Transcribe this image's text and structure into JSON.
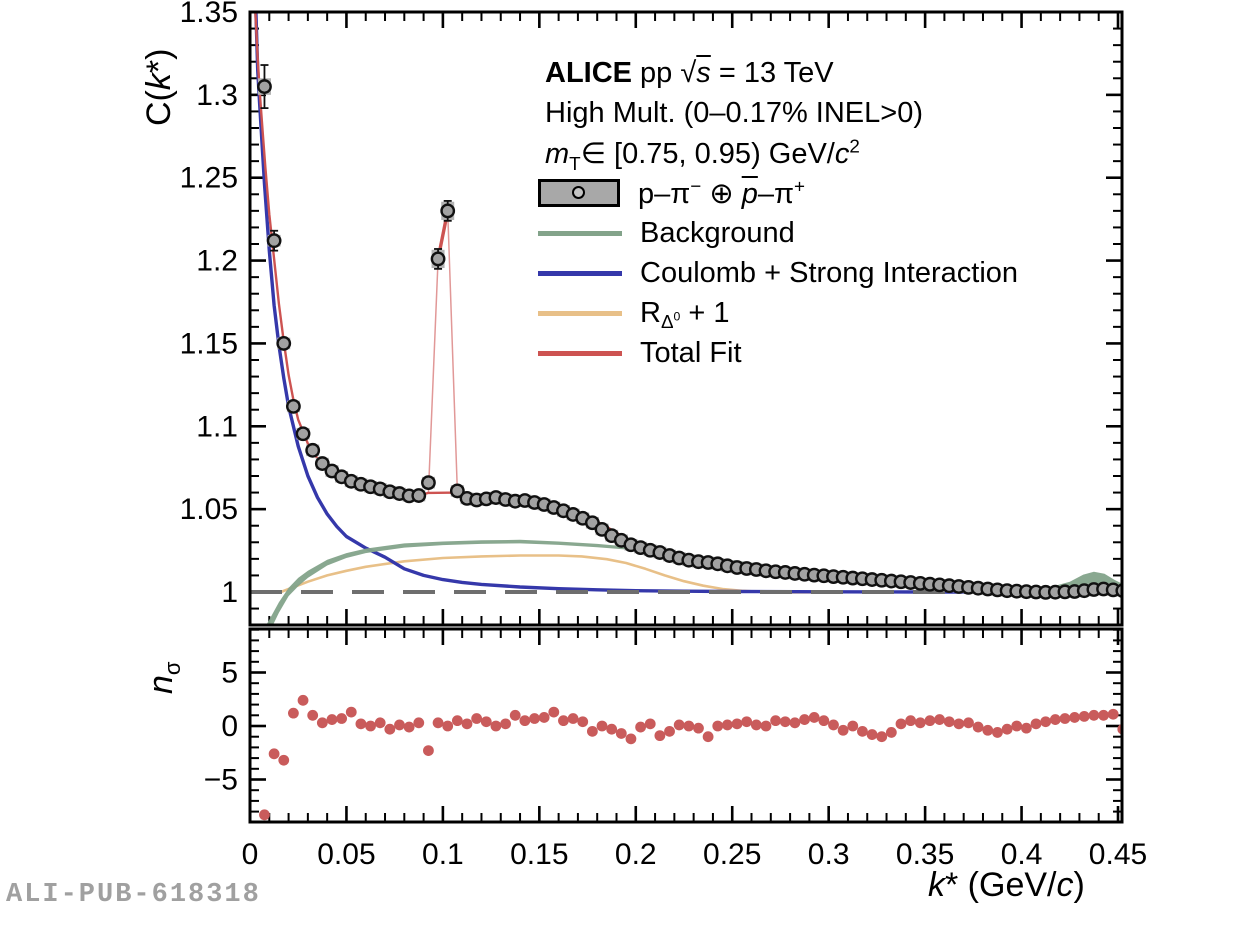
{
  "figure": {
    "watermark": "ALI-PUB-618318",
    "background": "#ffffff"
  },
  "legend": {
    "rows": [
      {
        "name": "alice-header",
        "swatch": "none",
        "color": "",
        "html": "<b>ALICE</b> pp √<i class=\"ov\">s</i> = 13 TeV"
      },
      {
        "name": "multiplicity",
        "swatch": "none",
        "color": "",
        "html": "High Mult. (0–0.17% INEL&gt;0)"
      },
      {
        "name": "mt-range",
        "swatch": "none",
        "color": "",
        "html": "<i>m</i><sub>T</sub>∈ [0.75, 0.95) GeV/<i>c</i><sup>2</sup>"
      },
      {
        "name": "data-pairs",
        "swatch": "box",
        "color": "#a8a8a8",
        "html": "p–π<sup>−</sup> ⊕ <span class=\"ov\">p</span>–π<sup>+</sup>"
      },
      {
        "name": "background",
        "swatch": "line",
        "color": "#83a38a",
        "html": "Background"
      },
      {
        "name": "coulomb",
        "swatch": "line",
        "color": "#3538aa",
        "html": "Coulomb + Strong Interaction"
      },
      {
        "name": "rdelta",
        "swatch": "line",
        "color": "#e8c088",
        "html": "R<sub>Δ<sup>0</sup></sub> + 1"
      },
      {
        "name": "total-fit",
        "swatch": "line",
        "color": "#cd5351",
        "html": "Total Fit"
      }
    ]
  },
  "chart_data": [
    {
      "type": "scatter",
      "panel": "correlation-function",
      "xlabel_html": "<i>k</i>* (GeV/<i>c</i>)",
      "ylabel_html": "C(<i>k</i>*)",
      "xlim": [
        0,
        0.4521
      ],
      "ylim": [
        0.98,
        1.35
      ],
      "xticks": {
        "major": [
          0,
          0.05,
          0.1,
          0.15,
          0.2,
          0.25,
          0.3,
          0.35,
          0.4,
          0.45
        ],
        "labels": [
          "0",
          "0.05",
          "0.1",
          "0.15",
          "0.2",
          "0.25",
          "0.3",
          "0.35",
          "0.4",
          "0.45"
        ],
        "minor_step": 0.01
      },
      "yticks": {
        "major": [
          1,
          1.05,
          1.1,
          1.15,
          1.2,
          1.25,
          1.3,
          1.35
        ],
        "labels": [
          "1",
          "1.05",
          "1.1",
          "1.15",
          "1.2",
          "1.25",
          "1.3",
          "1.35"
        ],
        "minor_step": 0.01
      },
      "reference_line": {
        "y": 1.0,
        "color": "#6e6e6e",
        "dash": [
          32,
          19
        ],
        "width": 4
      },
      "points": {
        "marker": {
          "r": 6.2,
          "fill": "#a2a2a2",
          "stroke": "#111111",
          "stroke_width": 2.4,
          "syst_color": "#b3b3b3",
          "stat_color": "#111111"
        },
        "k_start": 0.0075,
        "k_step": 0.005,
        "count": 90,
        "c": [
          1.305,
          1.212,
          1.15,
          1.112,
          1.0955,
          1.0855,
          1.0775,
          1.073,
          1.0695,
          1.0668,
          1.065,
          1.0635,
          1.0622,
          1.0605,
          1.0594,
          1.058,
          1.0582,
          1.066,
          1.201,
          1.23,
          1.061,
          1.0565,
          1.0555,
          1.0562,
          1.057,
          1.0558,
          1.0548,
          1.0552,
          1.054,
          1.0528,
          1.051,
          1.049,
          1.0468,
          1.0445,
          1.0418,
          1.0378,
          1.034,
          1.0312,
          1.0285,
          1.0268,
          1.0252,
          1.0238,
          1.022,
          1.0205,
          1.0192,
          1.0183,
          1.0178,
          1.017,
          1.0158,
          1.0148,
          1.0142,
          1.0136,
          1.0128,
          1.0122,
          1.0118,
          1.0112,
          1.0107,
          1.0102,
          1.0098,
          1.0093,
          1.0089,
          1.0084,
          1.008,
          1.0075,
          1.0071,
          1.0066,
          1.0062,
          1.0057,
          1.0052,
          1.0047,
          1.0043,
          1.0038,
          1.0033,
          1.0028,
          1.0023,
          1.0018,
          1.0013,
          1.0008,
          1.0005,
          1.0002,
          1.0,
          0.9998,
          0.9999,
          1.0001,
          1.0003,
          1.0008,
          1.0015,
          1.0018,
          1.0013,
          1.0008
        ],
        "stat_default": 0.0025,
        "stat_overrides": {
          "0": 0.013,
          "1": 0.006,
          "2": 0.004,
          "18": 0.006,
          "19": 0.006
        },
        "syst_default": 0.0035,
        "syst_overrides": {
          "0": 0.005,
          "18": 0.0055,
          "19": 0.0055
        }
      },
      "series": [
        {
          "name": "rdelta",
          "type": "line",
          "color": "#e8c088",
          "width": 2.6,
          "x": [
            0.016,
            0.02,
            0.025,
            0.03,
            0.04,
            0.05,
            0.06,
            0.08,
            0.1,
            0.12,
            0.14,
            0.16,
            0.172,
            0.185,
            0.195,
            0.205,
            0.215,
            0.225,
            0.235,
            0.245,
            0.255,
            0.265,
            0.28,
            0.3,
            0.32,
            0.4525
          ],
          "y": [
            1.0,
            1.0018,
            1.004,
            1.0062,
            1.01,
            1.0128,
            1.0152,
            1.0185,
            1.0205,
            1.0215,
            1.022,
            1.022,
            1.0215,
            1.0198,
            1.0175,
            1.014,
            1.01,
            1.0065,
            1.0038,
            1.0018,
            1.0007,
            1.0001,
            0.9997,
            0.9998,
            1.0,
            1.0
          ]
        },
        {
          "name": "coulomb",
          "type": "line",
          "color": "#3538aa",
          "width": 3.4,
          "x": [
            0.0028,
            0.004,
            0.005,
            0.0075,
            0.01,
            0.0125,
            0.015,
            0.0175,
            0.02,
            0.025,
            0.03,
            0.035,
            0.04,
            0.045,
            0.05,
            0.06,
            0.07,
            0.08,
            0.09,
            0.1,
            0.11,
            0.12,
            0.14,
            0.16,
            0.18,
            0.2,
            0.225,
            0.25,
            0.3,
            0.35,
            0.4525
          ],
          "y": [
            1.36,
            1.315,
            1.295,
            1.246,
            1.206,
            1.173,
            1.149,
            1.129,
            1.112,
            1.088,
            1.07,
            1.057,
            1.047,
            1.0395,
            1.0335,
            1.0265,
            1.021,
            1.014,
            1.01,
            1.0075,
            1.0058,
            1.0046,
            1.003,
            1.002,
            1.0013,
            1.0008,
            1.0005,
            1.0003,
            1.0001,
            1.0,
            1.0
          ]
        },
        {
          "name": "background-band",
          "type": "band",
          "color": "#83a38a",
          "opacity": 0.95,
          "x": [
            0.002,
            0.005,
            0.01,
            0.015,
            0.02,
            0.025,
            0.03,
            0.04,
            0.05,
            0.06,
            0.08,
            0.1,
            0.12,
            0.14,
            0.16,
            0.18,
            0.2,
            0.22,
            0.24,
            0.26,
            0.28,
            0.3,
            0.32,
            0.34,
            0.36,
            0.38,
            0.395,
            0.405,
            0.415,
            0.425,
            0.432,
            0.4375,
            0.443,
            0.448,
            0.4525
          ],
          "upper": [
            0.966,
            0.9735,
            0.9832,
            0.9938,
            1.0025,
            1.0085,
            1.0128,
            1.0195,
            1.0235,
            1.0262,
            1.0293,
            1.0305,
            1.0312,
            1.0315,
            1.0305,
            1.029,
            1.027,
            1.024,
            1.0208,
            1.0178,
            1.0148,
            1.0122,
            1.0098,
            1.0077,
            1.0052,
            1.003,
            1.0018,
            1.0018,
            1.003,
            1.0062,
            1.0105,
            1.0122,
            1.011,
            1.0075,
            1.0048
          ],
          "lower": [
            0.956,
            0.9645,
            0.9755,
            0.9875,
            0.9975,
            1.0035,
            1.0085,
            1.016,
            1.0205,
            1.0235,
            1.0268,
            1.0283,
            1.029,
            1.0293,
            1.0284,
            1.027,
            1.0252,
            1.0222,
            1.0192,
            1.0162,
            1.0133,
            1.0108,
            1.0085,
            1.0064,
            1.004,
            1.0018,
            1.0007,
            1.0004,
            1.0004,
            1.0005,
            1.0006,
            1.0007,
            1.0008,
            1.0008,
            1.0008
          ]
        },
        {
          "name": "total-fit",
          "type": "line",
          "color": "#cd5351",
          "width": 2.4,
          "x": [
            0.0023,
            0.003,
            0.004,
            0.005,
            0.0065,
            0.008,
            0.01,
            0.0125,
            0.015,
            0.0175,
            0.02,
            0.0225,
            0.025,
            0.03,
            0.035,
            0.04,
            0.045,
            0.05,
            0.055,
            0.06,
            0.065,
            0.07,
            0.075,
            0.08,
            0.085,
            0.09,
            0.0925,
            0.1075,
            0.112,
            0.118,
            0.125,
            0.132,
            0.14,
            0.148,
            0.155,
            0.162,
            0.17,
            0.178,
            0.186,
            0.194,
            0.202,
            0.21,
            0.22,
            0.23,
            0.24,
            0.25,
            0.26,
            0.27,
            0.28,
            0.29,
            0.3,
            0.32,
            0.34,
            0.36,
            0.38,
            0.4,
            0.42,
            0.435,
            0.4525
          ],
          "y": [
            1.36,
            1.345,
            1.322,
            1.303,
            1.279,
            1.256,
            1.228,
            1.201,
            1.174,
            1.151,
            1.131,
            1.116,
            1.104,
            1.0895,
            1.0805,
            1.075,
            1.071,
            1.0678,
            1.0655,
            1.0638,
            1.0622,
            1.0608,
            1.0596,
            1.0586,
            1.058,
            1.059,
            1.0598,
            1.06,
            1.0568,
            1.0558,
            1.056,
            1.0557,
            1.055,
            1.054,
            1.0528,
            1.051,
            1.0478,
            1.0438,
            1.0385,
            1.033,
            1.0285,
            1.025,
            1.0215,
            1.0195,
            1.018,
            1.0163,
            1.0148,
            1.0135,
            1.0122,
            1.011,
            1.01,
            1.008,
            1.0062,
            1.0043,
            1.0025,
            1.001,
            1.0004,
            1.0008,
            1.0008
          ]
        },
        {
          "name": "total-fit-spike",
          "type": "spike",
          "color": "#cd5351",
          "x": [
            0.0925,
            0.0975,
            0.1025,
            0.1075
          ],
          "y": [
            1.0598,
            1.201,
            1.23,
            1.06
          ],
          "flank_width": 1.5,
          "flank_opacity": 0.6,
          "core_width": 3.4
        }
      ]
    },
    {
      "type": "scatter",
      "panel": "fit-residuals",
      "ylabel_html": "<i>n</i><sub>σ</sub>",
      "ylim": [
        -8.97,
        9.07
      ],
      "yticks": {
        "major": [
          -5,
          0,
          5
        ],
        "labels": [
          "−5",
          "0",
          "5"
        ],
        "minor_step": 1
      },
      "points": {
        "color": "#c95b5b",
        "r": 5.4,
        "k_start": 0.0075,
        "k_step": 0.005,
        "count": 90,
        "n": [
          -8.3,
          -2.6,
          -3.2,
          1.2,
          2.4,
          1.0,
          0.3,
          0.6,
          0.7,
          1.3,
          0.2,
          0.0,
          0.3,
          -0.3,
          0.1,
          -0.1,
          0.3,
          -2.3,
          0.3,
          0.0,
          0.5,
          0.2,
          0.7,
          0.4,
          0.0,
          0.2,
          1.0,
          0.5,
          0.7,
          0.8,
          1.3,
          0.5,
          0.7,
          0.4,
          -0.5,
          0.0,
          -0.3,
          -0.7,
          -1.2,
          -0.1,
          0.2,
          -0.9,
          -0.5,
          0.1,
          0.0,
          -0.2,
          -1.0,
          0.0,
          0.1,
          0.2,
          0.4,
          0.1,
          0.0,
          0.5,
          0.4,
          0.3,
          0.6,
          0.8,
          0.5,
          0.1,
          -0.4,
          0.0,
          -0.5,
          -0.8,
          -1.0,
          -0.6,
          0.2,
          0.5,
          0.3,
          0.5,
          0.6,
          0.4,
          0.2,
          0.3,
          -0.1,
          -0.4,
          -0.6,
          -0.3,
          0.0,
          -0.2,
          0.2,
          0.4,
          0.6,
          0.7,
          0.8,
          0.9,
          1.0,
          1.0,
          1.1,
          -0.3
        ]
      }
    }
  ]
}
